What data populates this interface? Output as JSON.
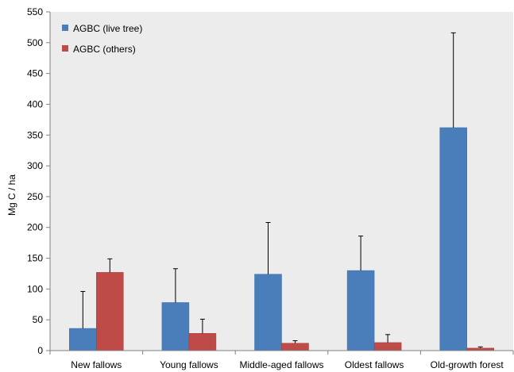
{
  "chart_data": {
    "type": "bar",
    "title": "",
    "xlabel": "",
    "ylabel": "Mg C / ha",
    "ylim": [
      0,
      550
    ],
    "ytick_step": 50,
    "grid": false,
    "legend_position": "top-left",
    "categories": [
      "New fallows",
      "Young fallows",
      "Middle-aged fallows",
      "Oldest fallows",
      "Old-growth forest"
    ],
    "series": [
      {
        "name": "AGBC (live tree)",
        "color": "#4a7ebb",
        "values": [
          36,
          78,
          124,
          130,
          362
        ],
        "error_upper": [
          60,
          55,
          84,
          56,
          154
        ]
      },
      {
        "name": "AGBC (others)",
        "color": "#be4b48",
        "values": [
          127,
          28,
          12,
          13,
          4
        ],
        "error_upper": [
          22,
          23,
          4,
          13,
          2
        ]
      }
    ],
    "plot_background": "#ececec"
  }
}
